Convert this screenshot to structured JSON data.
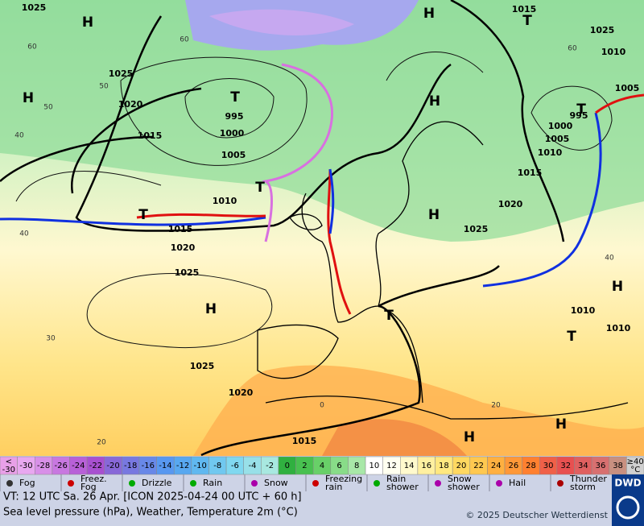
{
  "map": {
    "pressure_labels": [
      "1025",
      "1025",
      "1025",
      "1025",
      "1025",
      "1015",
      "1025",
      "1020",
      "1020",
      "1020",
      "1020",
      "1015",
      "1015",
      "1015",
      "1015",
      "1010",
      "1010",
      "1010",
      "1010",
      "1010",
      "1005",
      "1005",
      "1005",
      "1000",
      "1000",
      "995",
      "995"
    ],
    "centers": [
      "H",
      "H",
      "H",
      "H",
      "H",
      "H",
      "H",
      "H",
      "H",
      "T",
      "T",
      "T",
      "T",
      "T",
      "T",
      "T"
    ],
    "grid_labels": [
      "60",
      "60",
      "60",
      "50",
      "50",
      "40",
      "40",
      "40",
      "30",
      "20",
      "20",
      "0"
    ]
  },
  "scale": [
    {
      "label": "<\n-30",
      "color": "#e8a0e8"
    },
    {
      "label": "-30",
      "color": "#e8a8f0"
    },
    {
      "label": "-28",
      "color": "#d890e8"
    },
    {
      "label": "-26",
      "color": "#c878e0"
    },
    {
      "label": "-24",
      "color": "#b860d8"
    },
    {
      "label": "-22",
      "color": "#a850d0"
    },
    {
      "label": "-20",
      "color": "#8868d8"
    },
    {
      "label": "-18",
      "color": "#7878e0"
    },
    {
      "label": "-16",
      "color": "#6888e8"
    },
    {
      "label": "-14",
      "color": "#5898f0"
    },
    {
      "label": "-12",
      "color": "#58a8f0"
    },
    {
      "label": "-10",
      "color": "#60b8f0"
    },
    {
      "label": "-8",
      "color": "#70c8f0"
    },
    {
      "label": "-6",
      "color": "#80d8f0"
    },
    {
      "label": "-4",
      "color": "#98e0e8"
    },
    {
      "label": "-2",
      "color": "#a8e8e0"
    },
    {
      "label": "0",
      "color": "#30b040"
    },
    {
      "label": "2",
      "color": "#48c050"
    },
    {
      "label": "4",
      "color": "#68d068"
    },
    {
      "label": "6",
      "color": "#88dc88"
    },
    {
      "label": "8",
      "color": "#a8e8a8"
    },
    {
      "label": "10",
      "color": "#ffffff"
    },
    {
      "label": "12",
      "color": "#fffff0"
    },
    {
      "label": "14",
      "color": "#fffacd"
    },
    {
      "label": "16",
      "color": "#fff0a0"
    },
    {
      "label": "18",
      "color": "#ffe880"
    },
    {
      "label": "20",
      "color": "#ffd860"
    },
    {
      "label": "22",
      "color": "#ffc850"
    },
    {
      "label": "24",
      "color": "#ffb040"
    },
    {
      "label": "26",
      "color": "#ff9838"
    },
    {
      "label": "28",
      "color": "#ff8030"
    },
    {
      "label": "30",
      "color": "#f06048"
    },
    {
      "label": "32",
      "color": "#e85050"
    },
    {
      "label": "34",
      "color": "#e06060"
    },
    {
      "label": "36",
      "color": "#d87070"
    },
    {
      "label": "38",
      "color": "#c89080"
    },
    {
      "label": "≥40\n°C",
      "color": "#d0d0d0"
    }
  ],
  "legend": [
    "Fog",
    "Freez.\nFog",
    "Drizzle",
    "Rain",
    "Snow",
    "Freezing\nrain",
    "Rain\nshower",
    "Snow\nshower",
    "Hail",
    "Thunder\nstorm"
  ],
  "footer": {
    "valid_time": "VT: 12 UTC Sa.  26 Apr. [ICON 2025-04-24  00 UTC + 60 h]",
    "description": "Sea level pressure (hPa), Weather, Temperature 2m (°C)",
    "copyright": "© 2025 Deutscher Wetterdienst",
    "logo": "DWD"
  }
}
